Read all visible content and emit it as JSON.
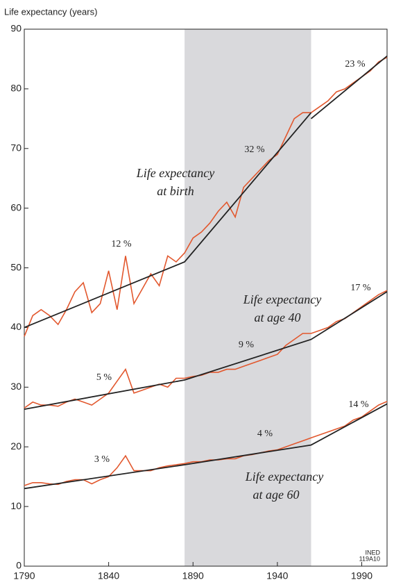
{
  "chart_data": {
    "type": "line",
    "y_axis_label": "Life expectancy (years)",
    "xlim": [
      1790,
      2005
    ],
    "ylim": [
      0,
      90
    ],
    "xticks": [
      1790,
      1840,
      1890,
      1940,
      1990
    ],
    "yticks": [
      0,
      10,
      20,
      30,
      40,
      50,
      60,
      70,
      80,
      90
    ],
    "shaded_range": [
      1885,
      1960
    ],
    "shade_color": "#d9d9dc",
    "series": [
      {
        "color": "#e2572d",
        "x": [
          1790,
          1795,
          1800,
          1805,
          1810,
          1815,
          1820,
          1825,
          1830,
          1835,
          1840,
          1845,
          1850,
          1855,
          1860,
          1865,
          1870,
          1875,
          1880,
          1885,
          1890,
          1895,
          1900,
          1905,
          1910,
          1915,
          1920,
          1925,
          1930,
          1935,
          1940,
          1945,
          1950,
          1955,
          1960,
          1965,
          1970,
          1975,
          1980,
          1985,
          1990,
          1995,
          2000,
          2005
        ],
        "values": [
          38.5,
          42,
          43,
          42,
          40.5,
          43,
          46,
          47.5,
          42.5,
          44,
          49.5,
          43,
          52,
          44,
          46.5,
          49,
          47,
          52,
          51,
          52.5,
          55,
          56,
          57.5,
          59.5,
          61,
          58.5,
          63.5,
          65,
          66.5,
          68,
          69,
          72,
          75,
          76,
          76,
          77,
          78,
          79.5,
          80,
          81,
          82,
          83,
          84.5,
          85.3
        ]
      },
      {
        "color": "#e2572d",
        "x": [
          1790,
          1795,
          1800,
          1805,
          1810,
          1815,
          1820,
          1825,
          1830,
          1835,
          1840,
          1845,
          1850,
          1855,
          1860,
          1865,
          1870,
          1875,
          1880,
          1885,
          1890,
          1895,
          1900,
          1905,
          1910,
          1915,
          1920,
          1925,
          1930,
          1935,
          1940,
          1945,
          1950,
          1955,
          1960,
          1965,
          1970,
          1975,
          1980,
          1985,
          1990,
          1995,
          2000,
          2005
        ],
        "values": [
          26.5,
          27.5,
          27,
          27,
          26.8,
          27.5,
          28,
          27.5,
          27,
          28,
          29,
          31,
          33,
          29,
          29.5,
          30,
          30.5,
          30,
          31.5,
          31.5,
          31.8,
          32,
          32.5,
          32.5,
          33,
          33,
          33.5,
          34,
          34.5,
          35,
          35.5,
          37,
          38,
          39,
          39,
          39.5,
          40,
          41,
          41.5,
          42.5,
          43.5,
          44.5,
          45.5,
          46.2
        ]
      },
      {
        "color": "#e2572d",
        "x": [
          1790,
          1795,
          1800,
          1805,
          1810,
          1815,
          1820,
          1825,
          1830,
          1835,
          1840,
          1845,
          1850,
          1855,
          1860,
          1865,
          1870,
          1875,
          1880,
          1885,
          1890,
          1895,
          1900,
          1905,
          1910,
          1915,
          1920,
          1925,
          1930,
          1935,
          1940,
          1945,
          1950,
          1955,
          1960,
          1965,
          1970,
          1975,
          1980,
          1985,
          1990,
          1995,
          2000,
          2005
        ],
        "values": [
          13.5,
          14,
          14,
          13.8,
          13.7,
          14.2,
          14.5,
          14.5,
          13.8,
          14.5,
          15,
          16.5,
          18.5,
          16,
          16,
          16,
          16.5,
          16.8,
          17,
          17.2,
          17.5,
          17.5,
          17.8,
          17.8,
          18,
          18,
          18.5,
          18.7,
          19,
          19.3,
          19.5,
          20,
          20.5,
          21,
          21.5,
          22,
          22.5,
          23,
          23.5,
          24.5,
          25,
          26,
          27,
          27.6
        ]
      },
      {
        "color": "#222222",
        "x": [
          1790,
          1885,
          1960
        ],
        "values": [
          40,
          51,
          76
        ]
      },
      {
        "color": "#222222",
        "x": [
          1960,
          2005
        ],
        "values": [
          75,
          85.5
        ]
      },
      {
        "color": "#222222",
        "x": [
          1790,
          1885,
          1960,
          2005
        ],
        "values": [
          26.3,
          31.2,
          38,
          46
        ]
      },
      {
        "color": "#222222",
        "x": [
          1790,
          1885,
          1960,
          2005
        ],
        "values": [
          13,
          17,
          20.3,
          27.2
        ]
      }
    ],
    "annotations": [
      "12 %",
      "32 %",
      "23 %",
      "5 %",
      "9 %",
      "17 %",
      "3 %",
      "4 %",
      "14 %",
      "Life expectancy",
      "at birth",
      "Life expectancy",
      "at age 40",
      "Life expectancy",
      "at age 60",
      "INED",
      "119A10"
    ]
  }
}
